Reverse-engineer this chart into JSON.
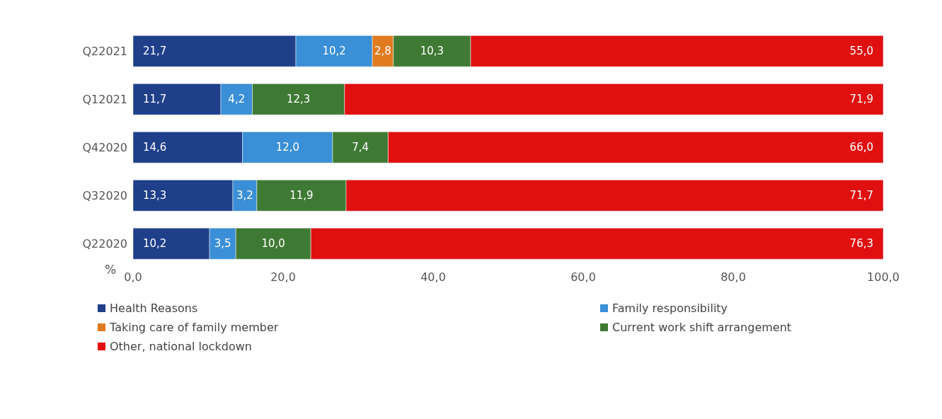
{
  "chart_data": {
    "type": "bar",
    "orientation": "horizontal",
    "stacked": true,
    "xlabel": "%",
    "categories": [
      "Q22021",
      "Q12021",
      "Q42020",
      "Q32020",
      "Q22020"
    ],
    "series": [
      {
        "name": "Health Reasons",
        "color": "#1f3f8a",
        "values": [
          21.7,
          11.7,
          14.6,
          13.3,
          10.2
        ],
        "value_labels": [
          "21,7",
          "11,7",
          "14,6",
          "13,3",
          "10,2"
        ]
      },
      {
        "name": "Family responsibility",
        "color": "#3a8fd6",
        "values": [
          10.2,
          4.2,
          12.0,
          3.2,
          3.5
        ],
        "value_labels": [
          "10,2",
          "4,2",
          "12,0",
          "3,2",
          "3,5"
        ]
      },
      {
        "name": "Taking care of family member",
        "color": "#e07b20",
        "values": [
          2.8,
          null,
          null,
          null,
          null
        ],
        "value_labels": [
          "2,8",
          null,
          null,
          null,
          null
        ]
      },
      {
        "name": "Current work shift arrangement",
        "color": "#3f7a34",
        "values": [
          10.3,
          12.3,
          7.4,
          11.9,
          10.0
        ],
        "value_labels": [
          "10,3",
          "12,3",
          "7,4",
          "11,9",
          "10,0"
        ]
      },
      {
        "name": "Other, national lockdown",
        "color": "#e01010",
        "values": [
          55.0,
          71.9,
          66.0,
          71.7,
          76.3
        ],
        "value_labels": [
          "55,0",
          "71,9",
          "66,0",
          "71,7",
          "76,3"
        ]
      }
    ],
    "xlim": [
      0,
      100
    ],
    "xticks": [
      {
        "value": 0,
        "label": "0,0"
      },
      {
        "value": 20,
        "label": "20,0"
      },
      {
        "value": 40,
        "label": "40,0"
      },
      {
        "value": 60,
        "label": "60,0"
      },
      {
        "value": 80,
        "label": "80,0"
      },
      {
        "value": 100,
        "label": "100,0"
      }
    ],
    "grid": false,
    "legend": "bottom"
  }
}
